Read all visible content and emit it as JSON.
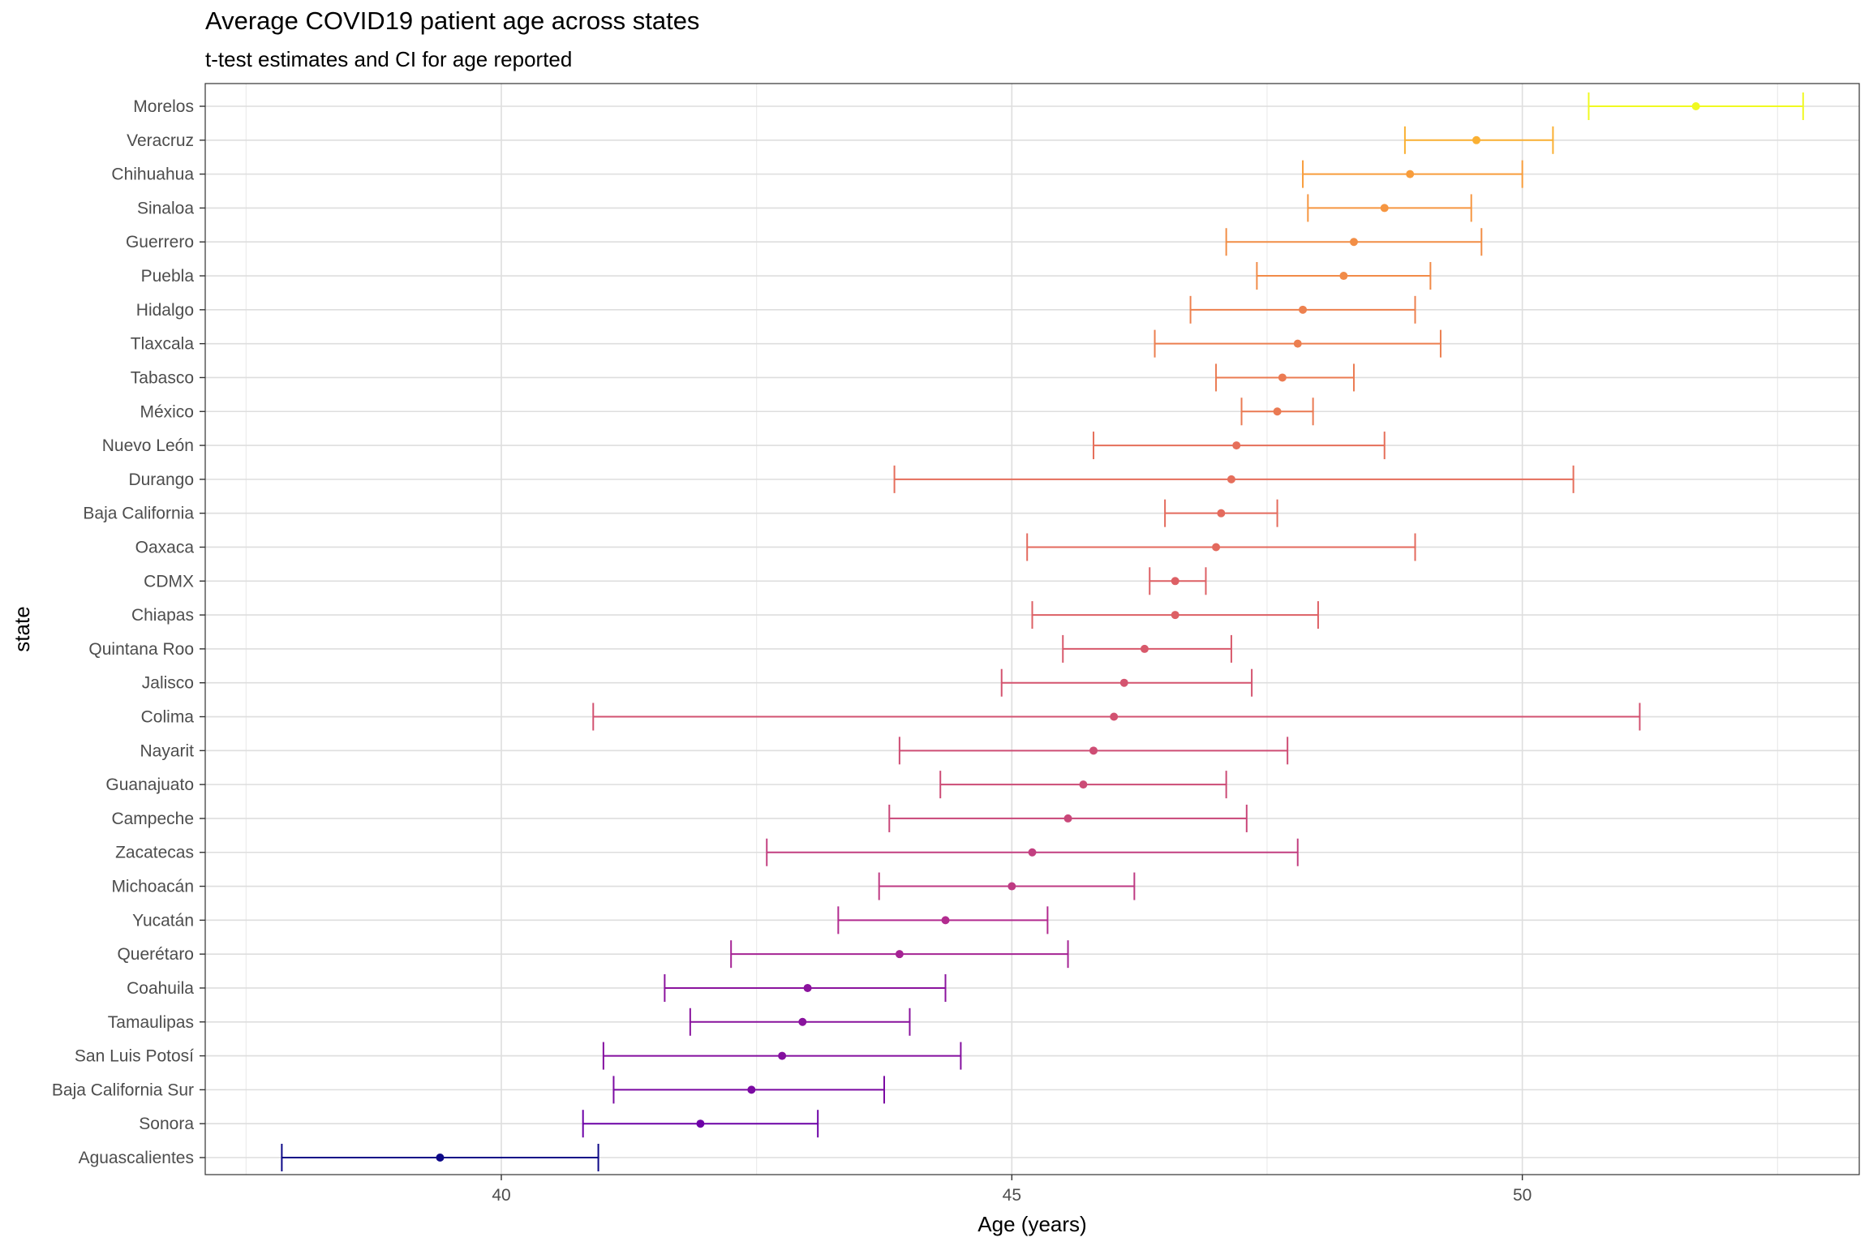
{
  "chart_data": {
    "type": "errorbar",
    "title": "Average COVID19 patient age across states",
    "subtitle": "t-test estimates and CI for age reported",
    "xlabel": "Age (years)",
    "ylabel": "state",
    "xlim": [
      37.1,
      53.3
    ],
    "xticks": [
      40,
      45,
      50
    ],
    "grid": true,
    "legend": "none",
    "color_low": "#0d0887",
    "color_high": "#f0f921",
    "palette": [
      "#0d0887",
      "#6a00a8",
      "#b12a90",
      "#e16462",
      "#fca636",
      "#f0f921"
    ],
    "states": [
      {
        "name": "Morelos",
        "estimate": 51.7,
        "lower": 50.65,
        "upper": 52.75
      },
      {
        "name": "Veracruz",
        "estimate": 49.55,
        "lower": 48.85,
        "upper": 50.3
      },
      {
        "name": "Chihuahua",
        "estimate": 48.9,
        "lower": 47.85,
        "upper": 50.0
      },
      {
        "name": "Sinaloa",
        "estimate": 48.65,
        "lower": 47.9,
        "upper": 49.5
      },
      {
        "name": "Guerrero",
        "estimate": 48.35,
        "lower": 47.1,
        "upper": 49.6
      },
      {
        "name": "Puebla",
        "estimate": 48.25,
        "lower": 47.4,
        "upper": 49.1
      },
      {
        "name": "Hidalgo",
        "estimate": 47.85,
        "lower": 46.75,
        "upper": 48.95
      },
      {
        "name": "Tlaxcala",
        "estimate": 47.8,
        "lower": 46.4,
        "upper": 49.2
      },
      {
        "name": "Tabasco",
        "estimate": 47.65,
        "lower": 47.0,
        "upper": 48.35
      },
      {
        "name": "México",
        "estimate": 47.6,
        "lower": 47.25,
        "upper": 47.95
      },
      {
        "name": "Nuevo León",
        "estimate": 47.2,
        "lower": 45.8,
        "upper": 48.65
      },
      {
        "name": "Durango",
        "estimate": 47.15,
        "lower": 43.85,
        "upper": 50.5
      },
      {
        "name": "Baja California",
        "estimate": 47.05,
        "lower": 46.5,
        "upper": 47.6
      },
      {
        "name": "Oaxaca",
        "estimate": 47.0,
        "lower": 45.15,
        "upper": 48.95
      },
      {
        "name": "CDMX",
        "estimate": 46.6,
        "lower": 46.35,
        "upper": 46.9
      },
      {
        "name": "Chiapas",
        "estimate": 46.6,
        "lower": 45.2,
        "upper": 48.0
      },
      {
        "name": "Quintana Roo",
        "estimate": 46.3,
        "lower": 45.5,
        "upper": 47.15
      },
      {
        "name": "Jalisco",
        "estimate": 46.1,
        "lower": 44.9,
        "upper": 47.35
      },
      {
        "name": "Colima",
        "estimate": 46.0,
        "lower": 40.9,
        "upper": 51.15
      },
      {
        "name": "Nayarit",
        "estimate": 45.8,
        "lower": 43.9,
        "upper": 47.7
      },
      {
        "name": "Guanajuato",
        "estimate": 45.7,
        "lower": 44.3,
        "upper": 47.1
      },
      {
        "name": "Campeche",
        "estimate": 45.55,
        "lower": 43.8,
        "upper": 47.3
      },
      {
        "name": "Zacatecas",
        "estimate": 45.2,
        "lower": 42.6,
        "upper": 47.8
      },
      {
        "name": "Michoacán",
        "estimate": 45.0,
        "lower": 43.7,
        "upper": 46.2
      },
      {
        "name": "Yucatán",
        "estimate": 44.35,
        "lower": 43.3,
        "upper": 45.35
      },
      {
        "name": "Querétaro",
        "estimate": 43.9,
        "lower": 42.25,
        "upper": 45.55
      },
      {
        "name": "Coahuila",
        "estimate": 43.0,
        "lower": 41.6,
        "upper": 44.35
      },
      {
        "name": "Tamaulipas",
        "estimate": 42.95,
        "lower": 41.85,
        "upper": 44.0
      },
      {
        "name": "San Luis Potosí",
        "estimate": 42.75,
        "lower": 41.0,
        "upper": 44.5
      },
      {
        "name": "Baja California Sur",
        "estimate": 42.45,
        "lower": 41.1,
        "upper": 43.75
      },
      {
        "name": "Sonora",
        "estimate": 41.95,
        "lower": 40.8,
        "upper": 43.1
      },
      {
        "name": "Aguascalientes",
        "estimate": 39.4,
        "lower": 37.85,
        "upper": 40.95
      }
    ]
  }
}
